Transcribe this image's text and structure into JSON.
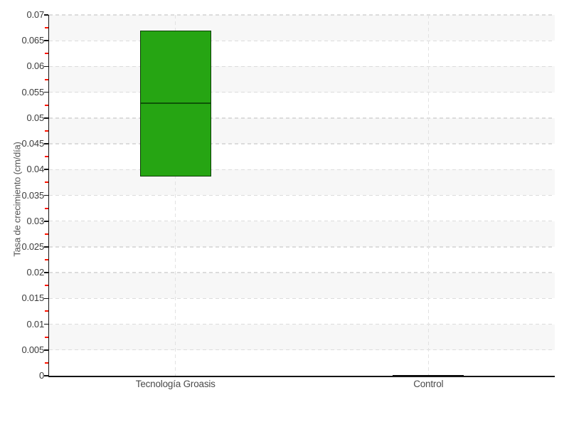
{
  "chart_data": {
    "type": "box",
    "title": "",
    "xlabel": "",
    "ylabel": "Tasa de crecimiento (cm/día)",
    "categories": [
      "Tecnología Groasis",
      "Control"
    ],
    "ylim": [
      0,
      0.07
    ],
    "ytick_step": 0.005,
    "minor_tick_step": 0.0025,
    "ytick_labels": [
      "0",
      "0.005",
      "0.01",
      "0.015",
      "0.02",
      "0.025",
      "0.03",
      "0.035",
      "0.04",
      "0.045",
      "0.05",
      "0.055",
      "0.06",
      "0.065",
      "0.07"
    ],
    "grid": "horizontal dashed gridlines at each tick, vertical dashed gridline at each category, alternating gray row bands",
    "legend": false,
    "series": [
      {
        "name": "Tecnología Groasis",
        "q1": 0.0387,
        "median": 0.053,
        "q3": 0.067,
        "fill": "#26a513",
        "border": "#0b3d04",
        "median_color": "#0e5506"
      },
      {
        "name": "Control",
        "q1": 0,
        "median": 0.0001,
        "q3": 0.0002,
        "fill": "#000000",
        "border": "#000000",
        "median_color": "#000000"
      }
    ]
  },
  "colors": {
    "background": "#ffffff",
    "row_band": "#f7f7f7",
    "gridline": "#dcdcdc",
    "axis": "#151515",
    "major_tick": "#151515",
    "minor_tick": "#ff1400",
    "tick_label": "#3c3c3c",
    "category_label": "#4a4a4a",
    "y_title": "#555555"
  }
}
